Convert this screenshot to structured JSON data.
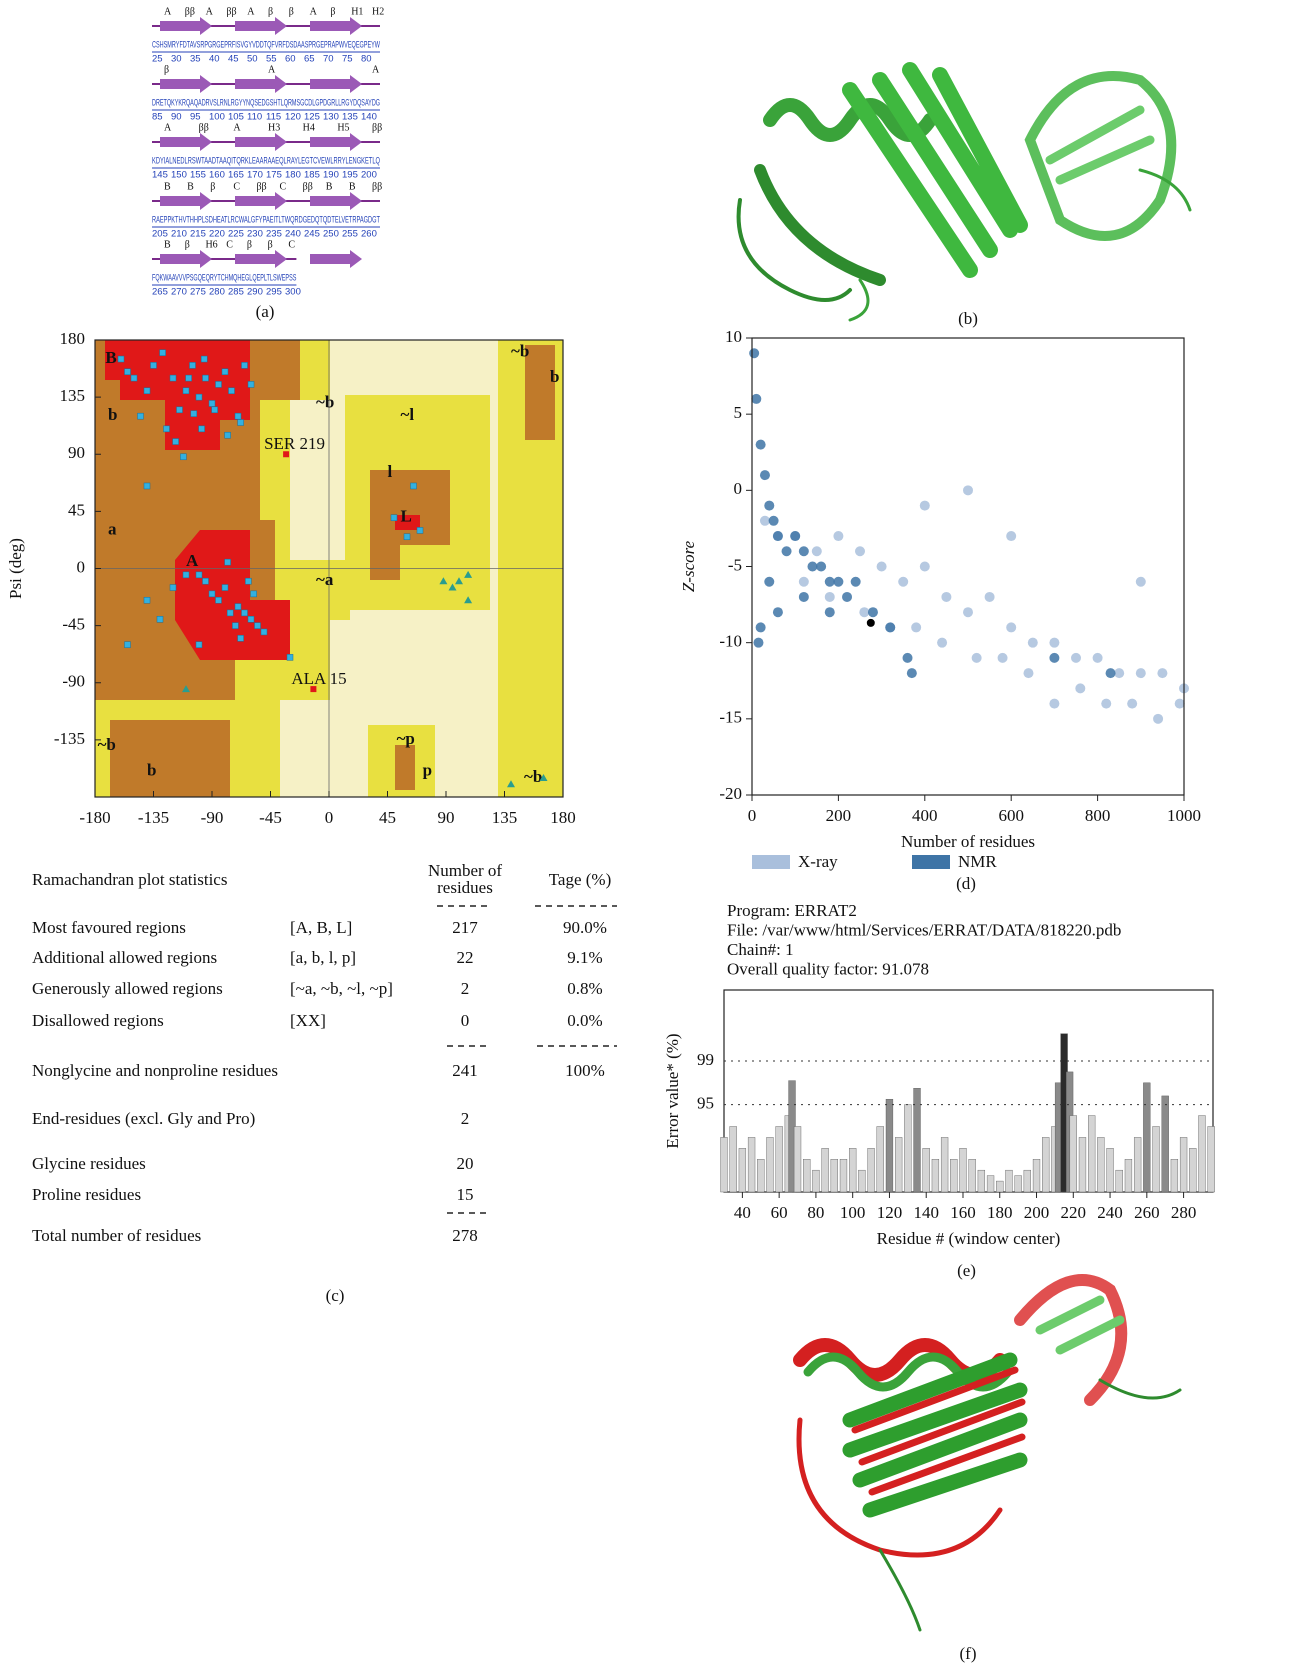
{
  "sequence_panel": {
    "label": "(a)",
    "rows": [
      {
        "sequence": "CSHSMRYFDTAVSRPGRGEPRFISVGYVDDTQFVRFDSDAASPRGEPRAPWVEQEGPEYW",
        "ticks": [
          25,
          30,
          35,
          40,
          45,
          50,
          55,
          60,
          65,
          70,
          75,
          80
        ],
        "ss": [
          "A",
          "ββ",
          "A",
          "ββ",
          "A",
          "β",
          "β",
          "A",
          "β",
          "H1",
          "H2"
        ]
      },
      {
        "sequence": "DRETQKYKRQAQADRVSLRNLRGYYNQSEDGSHTLQRMSGCDLGPDGRLLRGYDQSAYDG",
        "ticks": [
          85,
          90,
          95,
          100,
          105,
          110,
          115,
          120,
          125,
          130,
          135,
          140
        ],
        "ss": [
          "β",
          "A",
          "A"
        ]
      },
      {
        "sequence": "KDYIALNEDLRSWTAADTAAQITQRKLEAARAAEQLRAYLEGTCVEWLRRYLENGKETLQ",
        "ticks": [
          145,
          150,
          155,
          160,
          165,
          170,
          175,
          180,
          185,
          190,
          195,
          200
        ],
        "ss": [
          "A",
          "ββ",
          "A",
          "H3",
          "H4",
          "H5",
          "ββ"
        ]
      },
      {
        "sequence": "RAEPPKTHVTHHPLSDHEATLRCWALGFYPAEITLTWQRDGEDQTQDTELVETRPAGDGT",
        "ticks": [
          205,
          210,
          215,
          220,
          225,
          230,
          235,
          240,
          245,
          250,
          255,
          260
        ],
        "ss": [
          "B",
          "B",
          "β",
          "C",
          "ββ",
          "C",
          "ββ",
          "B",
          "B",
          "ββ"
        ]
      },
      {
        "sequence": "FQKWAAVVVPSGQEQRYTCHMQHEGLQEPLTLSWEPSS",
        "ticks": [
          265,
          270,
          275,
          280,
          285,
          290,
          295,
          300
        ],
        "ss": [
          "B",
          "β",
          "H6",
          "C",
          "β",
          "β",
          "C"
        ]
      }
    ]
  },
  "structure_b": {
    "label": "(b)"
  },
  "structure_f": {
    "label": "(f)"
  },
  "chart_data": [
    {
      "type": "scatter",
      "ylabel": "Psi (deg)",
      "xlim": [
        -180,
        180
      ],
      "ylim": [
        -180,
        180
      ],
      "xticks": [
        -180,
        -135,
        -90,
        -45,
        0,
        45,
        90,
        135,
        180
      ],
      "yticks": [
        -135,
        -90,
        -45,
        0,
        45,
        90,
        135,
        180
      ],
      "region_labels": [
        "B",
        "b",
        "a",
        "A",
        "~b",
        "~l",
        "l",
        "L",
        "~a",
        "~b",
        "b",
        "~p",
        "p",
        "~b",
        "b",
        "~b"
      ],
      "series": [
        {
          "marker": "square",
          "color": "#33b0e0",
          "x": [
            -160,
            -150,
            -140,
            -135,
            -128,
            -120,
            -115,
            -110,
            -105,
            -100,
            -95,
            -90,
            -85,
            -80,
            -75,
            -70,
            -65,
            -60,
            -145,
            -125,
            -118,
            -108,
            -98,
            -88,
            -78,
            -68,
            -140,
            -112,
            -96,
            -104,
            -155,
            -85,
            -70,
            -65,
            -60,
            -55,
            -58,
            -62,
            -50,
            -68,
            -72,
            -76,
            -80,
            -90,
            -95,
            -100,
            -110,
            -120,
            -130,
            -140,
            -155,
            -30,
            -100,
            65,
            70,
            50,
            60,
            -78
          ],
          "y": [
            165,
            150,
            140,
            160,
            170,
            150,
            125,
            140,
            160,
            135,
            150,
            130,
            145,
            155,
            140,
            120,
            160,
            145,
            120,
            110,
            100,
            150,
            110,
            125,
            105,
            115,
            65,
            88,
            165,
            122,
            155,
            -25,
            -30,
            -35,
            -40,
            -45,
            -20,
            -10,
            -50,
            -55,
            -45,
            -35,
            -15,
            -20,
            -10,
            -5,
            -5,
            -15,
            -40,
            -25,
            -60,
            -70,
            -60,
            65,
            30,
            40,
            25,
            5
          ]
        },
        {
          "marker": "triangle",
          "color": "#2a9d8f",
          "x": [
            88,
            95,
            100,
            107,
            107,
            140,
            165,
            -110
          ],
          "y": [
            -10,
            -15,
            -10,
            -5,
            -25,
            -170,
            -165,
            -95
          ]
        }
      ],
      "annotations": [
        {
          "text": "SER 219",
          "x": -33,
          "y": 90,
          "color": "#e01818"
        },
        {
          "text": "ALA 15",
          "x": -12,
          "y": -95,
          "color": "#e01818"
        }
      ]
    },
    {
      "type": "scatter",
      "xlabel": "Number of residues",
      "ylabel": "Z-score",
      "label": "(d)",
      "xlim": [
        0,
        1000
      ],
      "ylim": [
        -20,
        10
      ],
      "xticks": [
        0,
        200,
        400,
        600,
        800,
        1000
      ],
      "yticks": [
        -20,
        -15,
        -10,
        -5,
        0,
        5,
        10
      ],
      "legend": "bottom",
      "series": [
        {
          "name": "X-ray",
          "color": "#a9bfdc",
          "x": [
            30,
            60,
            100,
            150,
            200,
            250,
            300,
            350,
            400,
            450,
            500,
            550,
            600,
            650,
            700,
            750,
            800,
            850,
            900,
            950,
            1000,
            120,
            180,
            260,
            320,
            380,
            440,
            520,
            580,
            640,
            700,
            760,
            820,
            880,
            940,
            990,
            400,
            500,
            600,
            900
          ],
          "y": [
            -2,
            -3,
            -3,
            -4,
            -3,
            -4,
            -5,
            -6,
            -5,
            -7,
            -8,
            -7,
            -9,
            -10,
            -10,
            -11,
            -11,
            -12,
            -12,
            -12,
            -13,
            -6,
            -7,
            -8,
            -9,
            -9,
            -10,
            -11,
            -11,
            -12,
            -14,
            -13,
            -14,
            -14,
            -15,
            -14,
            -1,
            0,
            -3,
            -6
          ]
        },
        {
          "name": "NMR",
          "color": "#3e74a6",
          "x": [
            5,
            10,
            20,
            30,
            40,
            50,
            60,
            80,
            100,
            120,
            140,
            160,
            180,
            200,
            220,
            240,
            280,
            320,
            360,
            370,
            700,
            830,
            20,
            60,
            120,
            180,
            15,
            40
          ],
          "y": [
            9,
            6,
            3,
            1,
            -1,
            -2,
            -3,
            -4,
            -3,
            -4,
            -5,
            -5,
            -6,
            -6,
            -7,
            -6,
            -8,
            -9,
            -11,
            -12,
            -11,
            -12,
            -9,
            -8,
            -7,
            -8,
            -10,
            -6
          ]
        }
      ],
      "highlight_point": {
        "x": 275,
        "y": -8.7,
        "color": "#000000"
      }
    },
    {
      "type": "bar",
      "label": "(e)",
      "header_lines": [
        "Program: ERRAT2",
        "File: /var/www/html/Services/ERRAT/DATA/818220.pdb",
        "Chain#: 1",
        "Overall quality factor: 91.078"
      ],
      "xlabel": "Residue # (window center)",
      "ylabel": "Error value* (%)",
      "xlim": [
        30,
        296
      ],
      "ylim": [
        87,
        105.5
      ],
      "xticks": [
        40,
        60,
        80,
        100,
        120,
        140,
        160,
        180,
        200,
        220,
        240,
        260,
        280
      ],
      "yticks": [
        95,
        99
      ],
      "colors": [
        "#d4d4d4",
        "#8a8a8a",
        "#2b2b2b"
      ],
      "x": [
        30,
        35,
        40,
        45,
        50,
        55,
        60,
        65,
        67,
        70,
        75,
        80,
        85,
        90,
        95,
        100,
        105,
        110,
        115,
        120,
        125,
        130,
        135,
        140,
        145,
        150,
        155,
        160,
        165,
        170,
        175,
        180,
        185,
        190,
        195,
        200,
        205,
        210,
        212,
        215,
        218,
        220,
        225,
        230,
        235,
        240,
        245,
        250,
        255,
        260,
        265,
        270,
        275,
        280,
        285,
        290,
        295
      ],
      "values": [
        92,
        93,
        91,
        92,
        90,
        92,
        93,
        94,
        97.2,
        93,
        90,
        89,
        91,
        90,
        90,
        91,
        89,
        91,
        93,
        95.5,
        92,
        95,
        96.5,
        91,
        90,
        92,
        90,
        91,
        90,
        89,
        88.5,
        88,
        89,
        88.5,
        89,
        90,
        92,
        93,
        97,
        101.5,
        98,
        94,
        92,
        94,
        92,
        91,
        89,
        90,
        92,
        97,
        93,
        95.8,
        90,
        92,
        91,
        94,
        93
      ]
    }
  ],
  "stats_table": {
    "header": [
      "Ramachandran plot statistics",
      "Number of residues",
      "Tage (%)"
    ],
    "rows": [
      [
        "Most favoured regions",
        "[A, B, L]",
        "217",
        "90.0%"
      ],
      [
        "Additional allowed regions",
        "[a, b, l, p]",
        "22",
        "9.1%"
      ],
      [
        "Generously allowed regions",
        "[~a, ~b, ~l, ~p]",
        "2",
        "0.8%"
      ],
      [
        "Disallowed regions",
        "[XX]",
        "0",
        "0.0%"
      ],
      [
        "Nonglycine and nonproline residues",
        "241",
        "100%"
      ],
      [
        "End-residues (excl. Gly and Pro)",
        "2"
      ],
      [
        "Glycine residues",
        "20"
      ],
      [
        "Proline residues",
        "15"
      ],
      [
        "Total number of residues",
        "278"
      ]
    ],
    "label": "(c)"
  }
}
